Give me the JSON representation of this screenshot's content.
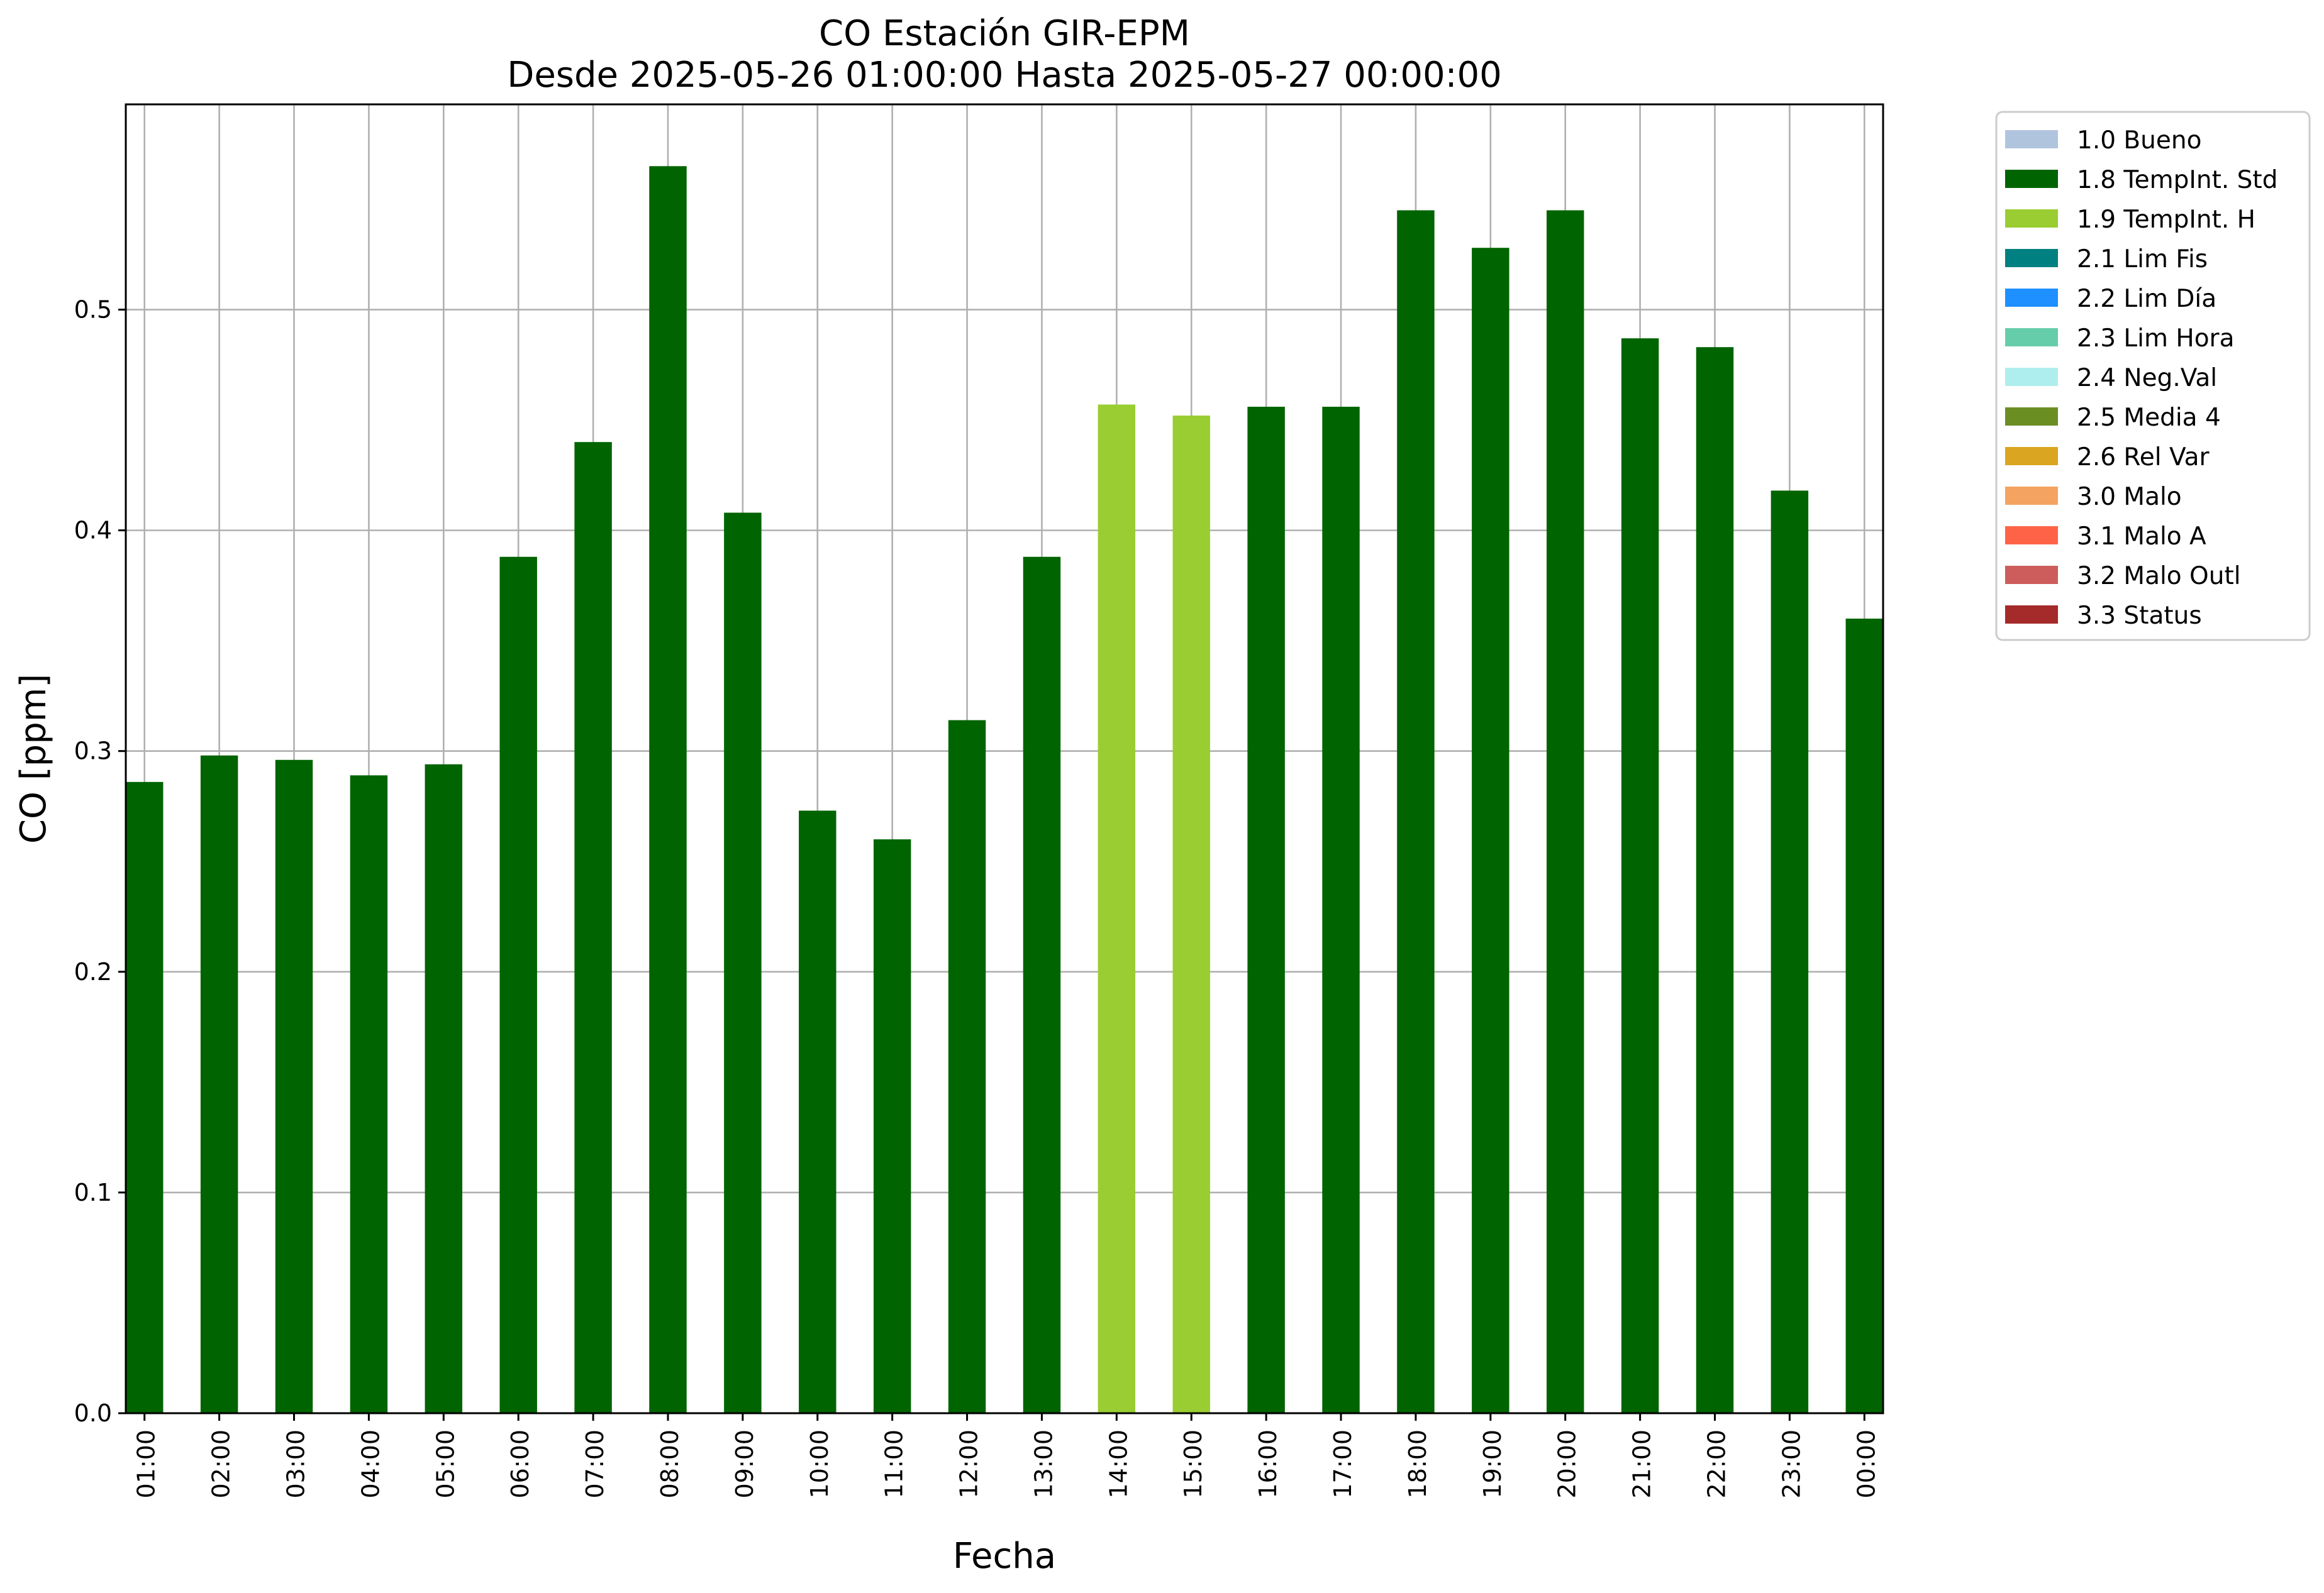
{
  "chart_data": {
    "type": "bar",
    "title": "CO Estación GIR-EPM",
    "subtitle": "Desde 2025-05-26 01:00:00 Hasta 2025-05-27 00:00:00",
    "xlabel": "Fecha",
    "ylabel": "CO [ppm]",
    "ylim": [
      0,
      0.593
    ],
    "yticks": [
      "0.0",
      "0.1",
      "0.2",
      "0.3",
      "0.4",
      "0.5"
    ],
    "grid": true,
    "legend_position": "outside-top-right",
    "categories": [
      "01:00",
      "02:00",
      "03:00",
      "04:00",
      "05:00",
      "06:00",
      "07:00",
      "08:00",
      "09:00",
      "10:00",
      "11:00",
      "12:00",
      "13:00",
      "14:00",
      "15:00",
      "16:00",
      "17:00",
      "18:00",
      "19:00",
      "20:00",
      "21:00",
      "22:00",
      "23:00",
      "00:00"
    ],
    "values": [
      0.286,
      0.298,
      0.296,
      0.289,
      0.294,
      0.388,
      0.44,
      0.565,
      0.408,
      0.273,
      0.26,
      0.314,
      0.388,
      0.457,
      0.452,
      0.456,
      0.456,
      0.545,
      0.528,
      0.545,
      0.487,
      0.483,
      0.418,
      0.36
    ],
    "flags": [
      "1.8 TempInt. Std",
      "1.8 TempInt. Std",
      "1.8 TempInt. Std",
      "1.8 TempInt. Std",
      "1.8 TempInt. Std",
      "1.8 TempInt. Std",
      "1.8 TempInt. Std",
      "1.8 TempInt. Std",
      "1.8 TempInt. Std",
      "1.8 TempInt. Std",
      "1.8 TempInt. Std",
      "1.8 TempInt. Std",
      "1.8 TempInt. Std",
      "1.9 TempInt. H",
      "1.9 TempInt. H",
      "1.8 TempInt. Std",
      "1.8 TempInt. Std",
      "1.8 TempInt. Std",
      "1.8 TempInt. Std",
      "1.8 TempInt. Std",
      "1.8 TempInt. Std",
      "1.8 TempInt. Std",
      "1.8 TempInt. Std",
      "1.8 TempInt. Std"
    ],
    "legend": [
      {
        "label": "1.0 Bueno",
        "color": "#b0c4de"
      },
      {
        "label": "1.8 TempInt. Std",
        "color": "#006400"
      },
      {
        "label": "1.9 TempInt. H",
        "color": "#9acd32"
      },
      {
        "label": "2.1 Lim Fis",
        "color": "#008080"
      },
      {
        "label": "2.2 Lim Día",
        "color": "#1e90ff"
      },
      {
        "label": "2.3 Lim Hora",
        "color": "#66cdaa"
      },
      {
        "label": "2.4 Neg.Val",
        "color": "#afeeee"
      },
      {
        "label": "2.5 Media 4",
        "color": "#6b8e23"
      },
      {
        "label": "2.6 Rel Var",
        "color": "#daa520"
      },
      {
        "label": "3.0 Malo",
        "color": "#f4a460"
      },
      {
        "label": "3.1 Malo A",
        "color": "#ff6347"
      },
      {
        "label": "3.2 Malo Outl",
        "color": "#cd5c5c"
      },
      {
        "label": "3.3 Status",
        "color": "#a52a2a"
      }
    ]
  }
}
